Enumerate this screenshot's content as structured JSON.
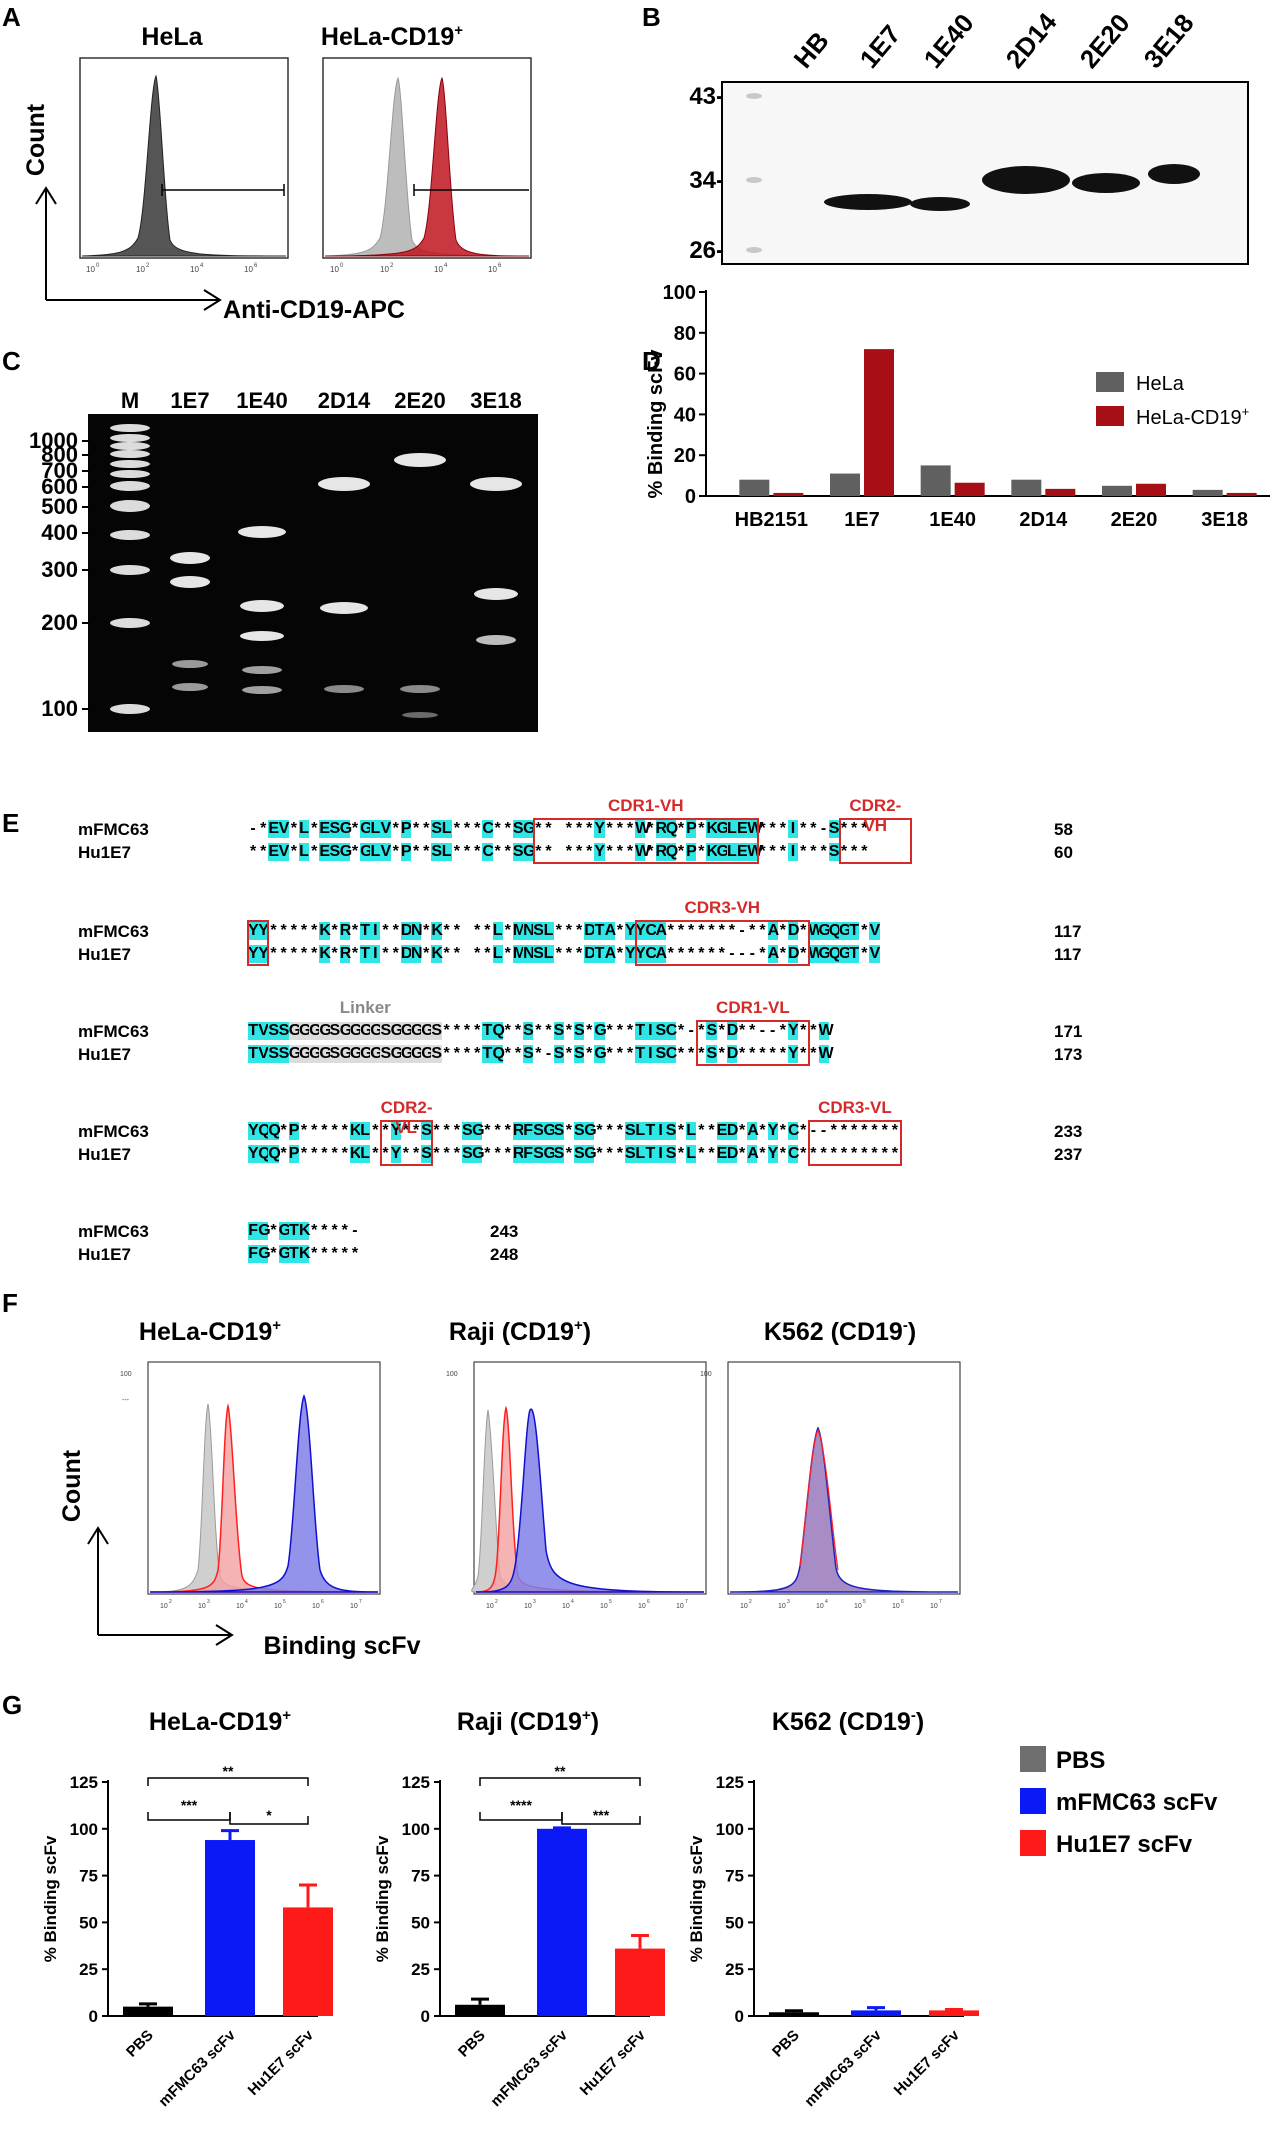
{
  "panels": {
    "A": "A",
    "B": "B",
    "C": "C",
    "D": "D",
    "E": "E",
    "F": "F",
    "G": "G"
  },
  "panelA": {
    "titles": [
      "HeLa",
      "HeLa-CD19",
      "+"
    ],
    "ylabel": "Count",
    "xlabel": "Anti-CD19-APC",
    "ticks": [
      "10",
      "0",
      "10",
      "2",
      "10",
      "4",
      "10",
      "6"
    ],
    "colors": {
      "dark": "#555555",
      "light": "#bdbdbd",
      "red": "#c0141e"
    }
  },
  "panelB": {
    "lanes": [
      "HB",
      "1E7",
      "1E40",
      "2D14",
      "2E20",
      "3E18"
    ],
    "markers": [
      "43-",
      "34-",
      "26-"
    ]
  },
  "panelC": {
    "lanes": [
      "M",
      "1E7",
      "1E40",
      "2D14",
      "2E20",
      "3E18"
    ],
    "markers": [
      "1000",
      "800",
      "700",
      "600",
      "500",
      "400",
      "300",
      "200",
      "100"
    ]
  },
  "panelD": {
    "chart_data": {
      "type": "bar",
      "categories": [
        "HB2151",
        "1E7",
        "1E40",
        "2D14",
        "2E20",
        "3E18"
      ],
      "series": [
        {
          "name": "HeLa",
          "color": "#606060",
          "values": [
            8,
            11,
            15,
            8,
            5,
            3
          ]
        },
        {
          "name": "HeLa-CD19+",
          "color": "#a50f15",
          "values": [
            1.5,
            72,
            6.5,
            3.5,
            6,
            1.5
          ]
        }
      ],
      "ylabel": "% Binding scFv",
      "ylim": [
        0,
        100
      ],
      "yticks": [
        "0",
        "20",
        "40",
        "60",
        "80",
        "100"
      ],
      "legend": [
        "HeLa",
        "HeLa-CD19",
        "+"
      ]
    }
  },
  "panelE": {
    "rows": [
      {
        "a": "mFMC63",
        "b": "Hu1E7",
        "seqA": "-*EV*L*ESG*GLV*P**SL***C**SG** ***Y***W*RQ*P*KGLEW***I**-S***",
        "seqB": "**EV*L*ESG*GLV*P**SL***C**SG** ***Y***W*RQ*P*KGLEW***I***S***",
        "numA": "58",
        "numB": "60",
        "labels": [
          "CDR1-VH",
          "CDR2-VH"
        ]
      },
      {
        "a": "mFMC63",
        "b": "Hu1E7",
        "seqA": "YY*****K*R*TI**DN*K** **L*MNSL***DTA*YYCA*******-**A*D*WGQGT*V",
        "seqB": "YY*****K*R*TI**DN*K** **L*MNSL***DTA*YYCA******---*A*D*WGQGT*V",
        "numA": "117",
        "numB": "117",
        "labels": [
          "CDR3-VH"
        ]
      },
      {
        "a": "mFMC63",
        "b": "Hu1E7",
        "seqA": "TVSSGGGGSGGGGSGGGGS****TQ**S**S*S*G***TISC*-*S*D**--*Y**W",
        "seqB": "TVSSGGGGSGGGGSGGGGS****TQ**S*-S*S*G***TISC***S*D*****Y**W",
        "numA": "171",
        "numB": "173",
        "labels": [
          "Linker",
          "CDR1-VL"
        ]
      },
      {
        "a": "mFMC63",
        "b": "Hu1E7",
        "seqA": "YQQ*P*****KL**Y**S***SG***RFSGS*SG***SLTIS*L**ED*A*Y*C*--*******",
        "seqB": "YQQ*P*****KL**Y**S***SG***RFSGS*SG***SLTIS*L**ED*A*Y*C**********",
        "numA": "233",
        "numB": "237",
        "labels": [
          "CDR2-VL",
          "CDR3-VL"
        ]
      },
      {
        "a": "mFMC63",
        "b": "Hu1E7",
        "seqA": "FG*GTK****-",
        "seqB": "FG*GTK*****",
        "numA": "243",
        "numB": "248",
        "labels": []
      }
    ],
    "colors": {
      "highlight": "#2ee6e6",
      "box": "#d42a2a",
      "linker": "#dcdcdc"
    }
  },
  "panelF": {
    "titles": [
      "HeLa-CD19",
      "+",
      "Raji (CD19",
      "+",
      ")",
      "K562 (CD19",
      "-",
      ")"
    ],
    "ylabel": "Count",
    "xlabel": "Binding scFv",
    "yticks": [
      "100",
      "---"
    ],
    "xticks": [
      "10",
      "2",
      "10",
      "3",
      "10",
      "4",
      "10",
      "5",
      "10",
      "6",
      "10",
      "7"
    ]
  },
  "panelG": {
    "chart_data": [
      {
        "type": "bar",
        "title": "HeLa-CD19+",
        "categories": [
          "PBS",
          "mFMC63 scFv",
          "Hu1E7 scFv"
        ],
        "values": [
          5,
          94,
          58
        ],
        "errors": [
          1.5,
          5,
          12
        ],
        "ylabel": "% Binding scFv",
        "ylim": [
          0,
          125
        ],
        "yticks": [
          "0",
          "25",
          "50",
          "75",
          "100",
          "125"
        ],
        "significance": [
          "***",
          "**",
          "*"
        ]
      },
      {
        "type": "bar",
        "title": "Raji (CD19+)",
        "categories": [
          "PBS",
          "mFMC63 scFv",
          "Hu1E7 scFv"
        ],
        "values": [
          6,
          100,
          36
        ],
        "errors": [
          3,
          0.5,
          7
        ],
        "ylabel": "% Binding scFv",
        "ylim": [
          0,
          125
        ],
        "yticks": [
          "0",
          "25",
          "50",
          "75",
          "100",
          "125"
        ],
        "significance": [
          "****",
          "**",
          "***"
        ]
      },
      {
        "type": "bar",
        "title": "K562 (CD19-)",
        "categories": [
          "PBS",
          "mFMC63 scFv",
          "Hu1E7 scFv"
        ],
        "values": [
          2,
          3,
          3
        ],
        "errors": [
          0.8,
          1.5,
          0.5
        ],
        "ylabel": "% Binding scFv",
        "ylim": [
          0,
          125
        ],
        "yticks": [
          "0",
          "25",
          "50",
          "75",
          "100",
          "125"
        ],
        "significance": []
      }
    ],
    "titles": [
      "HeLa-CD19",
      "+",
      "Raji (CD19",
      "+",
      ")",
      "K562 (CD19",
      "-",
      ")"
    ],
    "legend": [
      "PBS",
      "mFMC63 scFv",
      "Hu1E7 scFv"
    ],
    "colors": {
      "PBS": "#6e6e6e",
      "mFMC63": "#0a19f5",
      "Hu1E7": "#ff1a1a",
      "pbsBar": "#000000"
    }
  }
}
